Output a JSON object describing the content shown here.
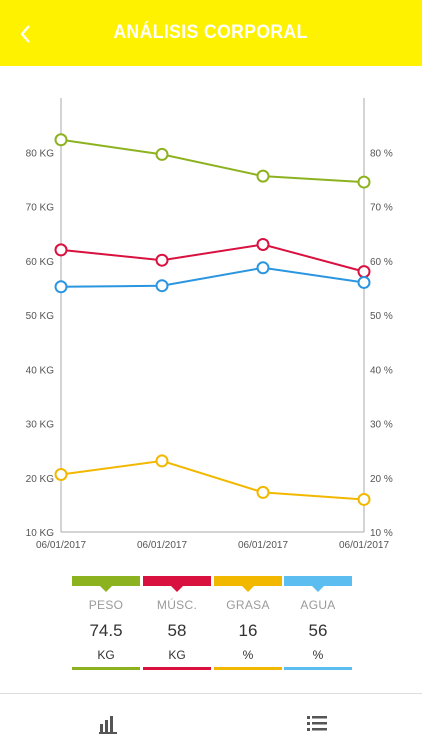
{
  "header": {
    "title": "ANÁLISIS CORPORAL",
    "accent": "#fff200"
  },
  "icons": {
    "back": "chevron-left-icon",
    "chart_tab": "bar-chart-icon",
    "list_tab": "list-icon"
  },
  "chart_data": {
    "type": "line",
    "title": "",
    "x": [
      "06/01/2017",
      "06/01/2017",
      "06/01/2017",
      "06/01/2017"
    ],
    "y_left": {
      "label": "",
      "ticks": [
        "10 KG",
        "20 KG",
        "30 KG",
        "40 KG",
        "50 KG",
        "60 KG",
        "70 KG",
        "80 KG"
      ],
      "range": [
        10,
        90
      ]
    },
    "y_right": {
      "label": "",
      "ticks": [
        "10 %",
        "20 %",
        "30 %",
        "40 %",
        "50 %",
        "60 %",
        "70 %",
        "80 %"
      ],
      "range": [
        10,
        90
      ]
    },
    "grid": false,
    "series": [
      {
        "key": "peso",
        "color": "#8db21f",
        "values": [
          82.3,
          79.6,
          75.6,
          74.5
        ]
      },
      {
        "key": "musc",
        "color": "#d9113f",
        "values": [
          62.0,
          60.1,
          63.0,
          58.0
        ]
      },
      {
        "key": "grasa",
        "color": "#f2b800",
        "values": [
          20.6,
          23.1,
          17.3,
          16.0
        ]
      },
      {
        "key": "agua",
        "color": "#2a96e0",
        "values": [
          55.2,
          55.4,
          58.7,
          56.0
        ]
      }
    ]
  },
  "legend": [
    {
      "name": "PESO",
      "value": "74.5",
      "unit": "KG",
      "color": "#8db21f"
    },
    {
      "name": "MÚSC.",
      "value": "58",
      "unit": "KG",
      "color": "#d9113f"
    },
    {
      "name": "GRASA",
      "value": "16",
      "unit": "%",
      "color": "#f2b800"
    },
    {
      "name": "AGUA",
      "value": "56",
      "unit": "%",
      "color": "#5bbdf0"
    }
  ]
}
